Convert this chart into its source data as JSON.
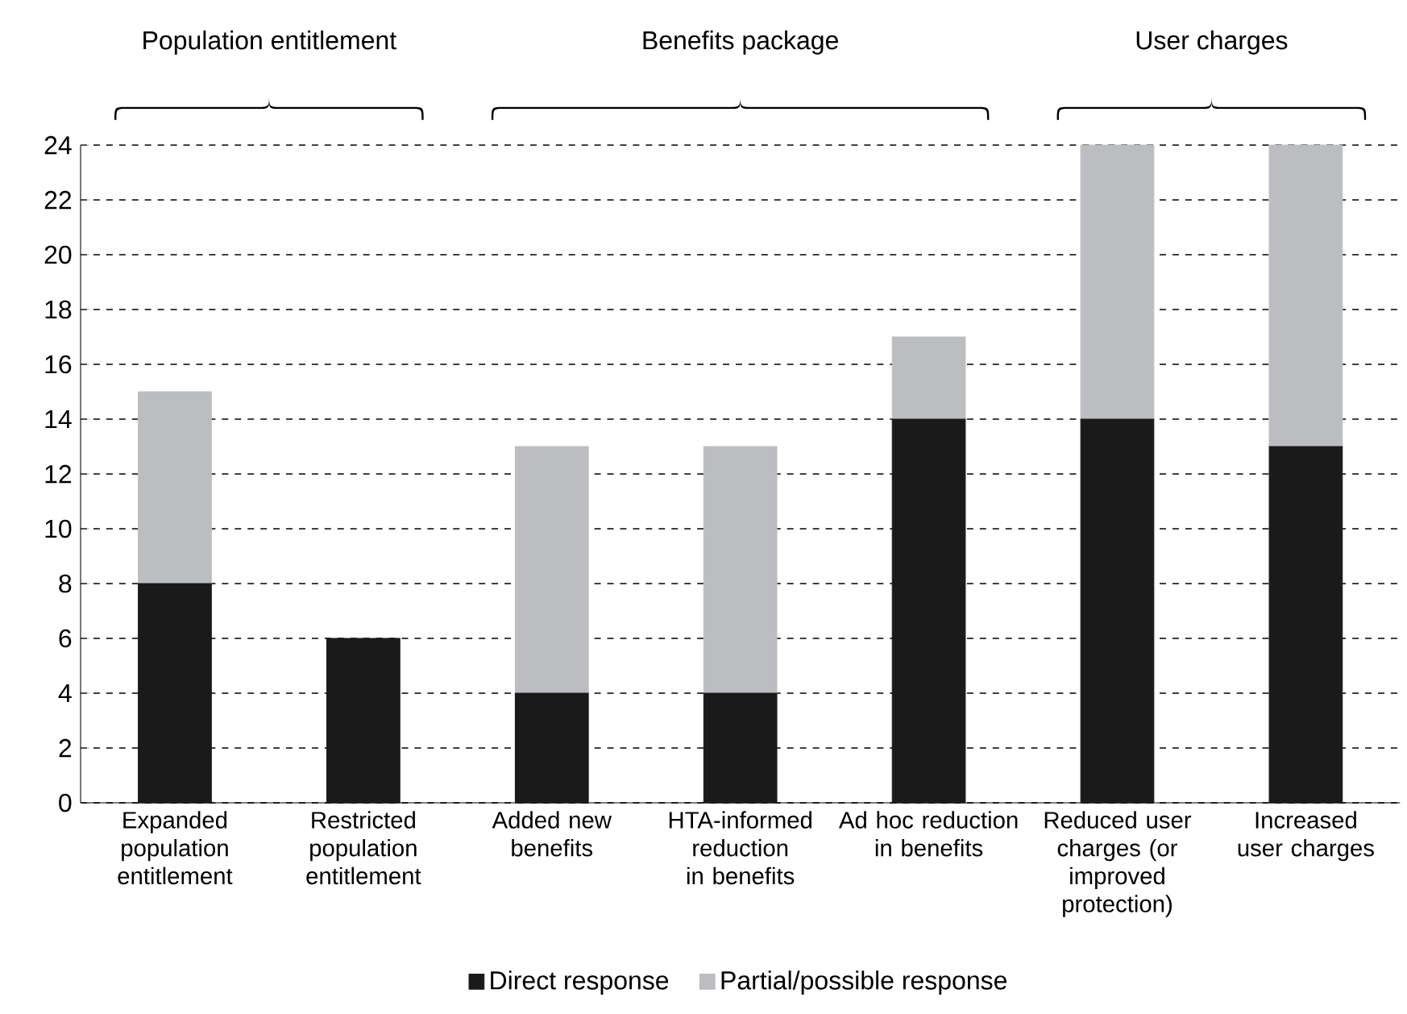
{
  "chart_data": {
    "type": "bar",
    "stacked": true,
    "categories": [
      "Expanded population entitlement",
      "Restricted population entitlement",
      "Added new benefits",
      "HTA-informed reduction in benefits",
      "Ad hoc reduction in benefits",
      "Reduced user charges (or improved protection)",
      "Increased user charges"
    ],
    "series": [
      {
        "name": "Direct response",
        "color": "#1a1a1a",
        "values": [
          8,
          6,
          4,
          4,
          14,
          14,
          13
        ]
      },
      {
        "name": "Partial/possible response",
        "color": "#bcbdc0",
        "values": [
          7,
          0,
          9,
          9,
          3,
          10,
          11
        ]
      }
    ],
    "ylim": [
      0,
      24
    ],
    "yticks": [
      0,
      2,
      4,
      6,
      8,
      10,
      12,
      14,
      16,
      18,
      20,
      22,
      24
    ],
    "grid": "y",
    "legend": "bottom",
    "annotations": [
      "Population entitlement",
      "Benefits package",
      "User charges"
    ]
  }
}
